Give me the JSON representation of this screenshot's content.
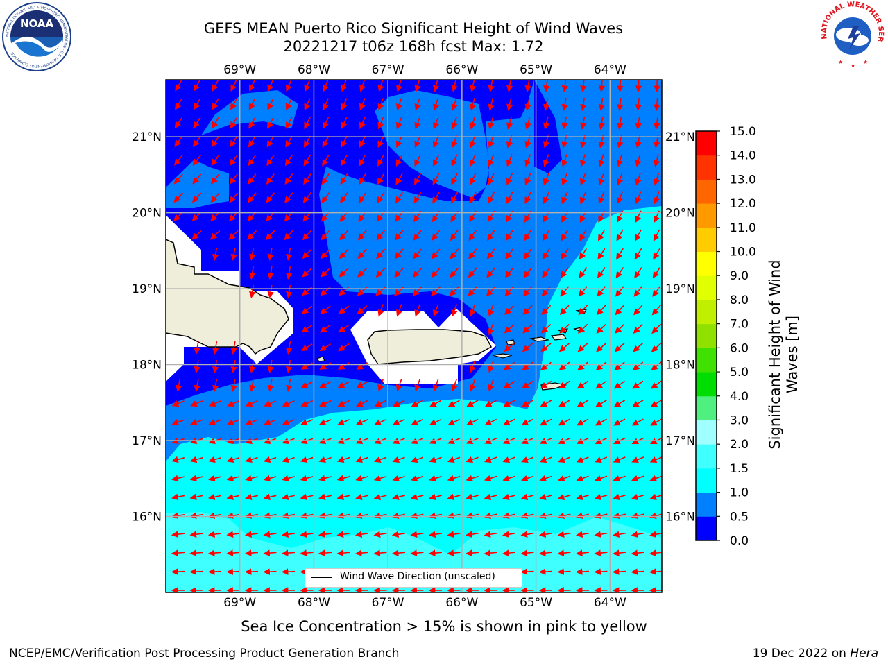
{
  "title": {
    "line1": "GEFS MEAN Puerto Rico Significant Height of Wind Waves",
    "line2": "20221217 t06z 168h fcst   Max: 1.72"
  },
  "logos": {
    "left": {
      "name": "noaa-logo",
      "text": "NOAA",
      "ring_text": "NATIONAL OCEANIC AND ATMOSPHERIC ADMINISTRATION · U.S. DEPARTMENT OF COMMERCE"
    },
    "right": {
      "name": "nws-logo",
      "ring_text": "NATIONAL WEATHER SERVICE"
    }
  },
  "map": {
    "lon_ticks": [
      "69°W",
      "68°W",
      "67°W",
      "66°W",
      "65°W",
      "64°W"
    ],
    "lat_ticks": [
      "21°N",
      "20°N",
      "19°N",
      "18°N",
      "17°N",
      "16°N"
    ],
    "lon_range": [
      -70.0,
      -63.3
    ],
    "lat_range": [
      15.0,
      21.75
    ],
    "grid": true,
    "legend": {
      "label": "Wind Wave Direction (unscaled)",
      "location": "bottom-center"
    },
    "colors": {
      "land": "#efeedb",
      "mask": "#ffffff",
      "arrow": "#ff0000",
      "grid": "#b0b0b0"
    }
  },
  "colorbar": {
    "label": "Significant Height of Wind Waves [m]",
    "label_line1": "Significant Height of Wind",
    "label_line2": "Waves [m]",
    "tick_labels": [
      "0.0",
      "0.5",
      "1.0",
      "1.5",
      "2.0",
      "3.0",
      "4.0",
      "5.0",
      "6.0",
      "7.0",
      "8.0",
      "9.0",
      "10.0",
      "11.0",
      "12.0",
      "13.0",
      "14.0",
      "15.0"
    ],
    "colors": [
      "#0000ff",
      "#0080ff",
      "#00ffff",
      "#40ffff",
      "#a0ffff",
      "#50f080",
      "#00dd00",
      "#40e000",
      "#90e000",
      "#c0f000",
      "#e0ff00",
      "#ffff00",
      "#ffcc00",
      "#ff9900",
      "#ff6600",
      "#ff3300",
      "#ff0000"
    ]
  },
  "caption": "Sea Ice Concentration > 15% is shown in pink to yellow",
  "footer": {
    "left": "NCEP/EMC/Verification Post Processing Product Generation Branch",
    "right_prefix": "19 Dec 2022 on ",
    "right_host": "Hera"
  }
}
